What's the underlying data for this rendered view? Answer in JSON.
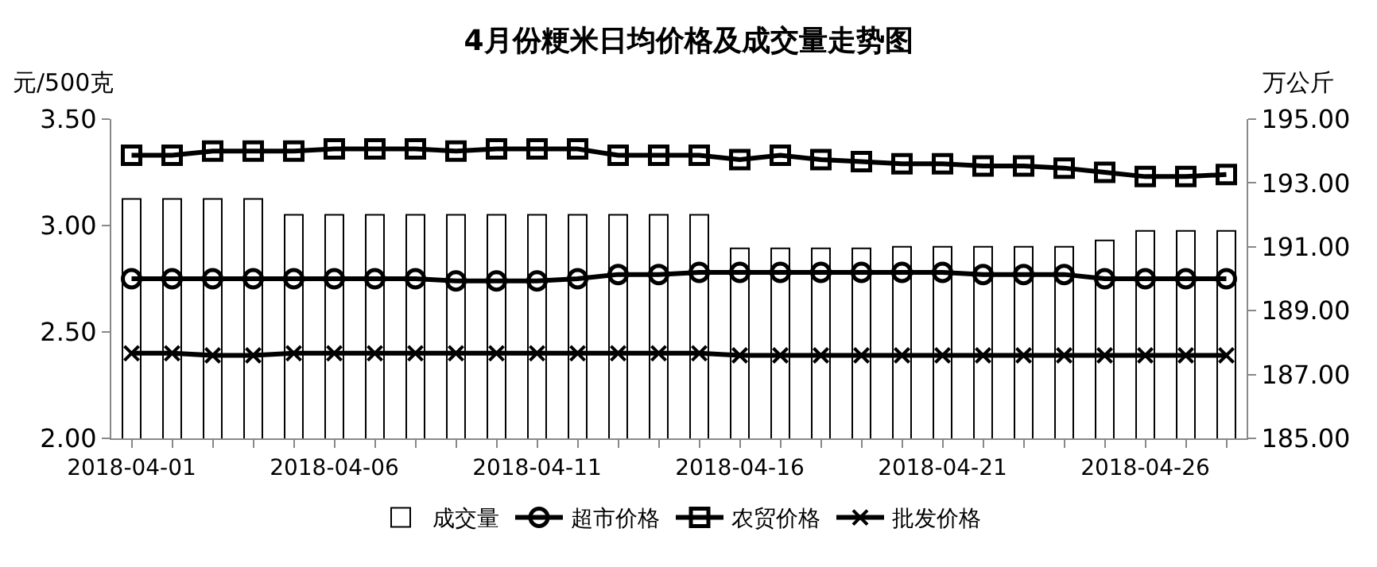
{
  "chart_data": {
    "type": "line",
    "title": "4月份粳米日均价格及成交量走势图",
    "ylabel": "元/500克",
    "y2label": "万公斤",
    "x": [
      "2018-04-01",
      "2018-04-02",
      "2018-04-03",
      "2018-04-04",
      "2018-04-05",
      "2018-04-06",
      "2018-04-07",
      "2018-04-08",
      "2018-04-09",
      "2018-04-10",
      "2018-04-11",
      "2018-04-12",
      "2018-04-13",
      "2018-04-14",
      "2018-04-15",
      "2018-04-16",
      "2018-04-17",
      "2018-04-18",
      "2018-04-19",
      "2018-04-20",
      "2018-04-21",
      "2018-04-22",
      "2018-04-23",
      "2018-04-24",
      "2018-04-25",
      "2018-04-26",
      "2018-04-27",
      "2018-04-28"
    ],
    "series": [
      {
        "name": "成交量",
        "type": "bar",
        "axis": "y2",
        "color": "#ffffff",
        "values": [
          192.5,
          192.5,
          192.5,
          192.5,
          192.0,
          192.0,
          192.0,
          192.0,
          192.0,
          192.0,
          192.0,
          192.0,
          192.0,
          192.0,
          192.0,
          190.95,
          190.95,
          190.95,
          190.95,
          191.0,
          191.0,
          191.0,
          191.0,
          191.0,
          191.2,
          191.5,
          191.5,
          191.5
        ]
      },
      {
        "name": "超市价格",
        "color": "#000000",
        "marker": "circle",
        "values": [
          2.75,
          2.75,
          2.75,
          2.75,
          2.75,
          2.75,
          2.75,
          2.75,
          2.74,
          2.74,
          2.74,
          2.75,
          2.77,
          2.77,
          2.78,
          2.78,
          2.78,
          2.78,
          2.78,
          2.78,
          2.78,
          2.77,
          2.77,
          2.77,
          2.75,
          2.75,
          2.75,
          2.75
        ]
      },
      {
        "name": "农贸价格",
        "color": "#000000",
        "marker": "square",
        "values": [
          3.33,
          3.33,
          3.35,
          3.35,
          3.35,
          3.36,
          3.36,
          3.36,
          3.35,
          3.36,
          3.36,
          3.36,
          3.33,
          3.33,
          3.33,
          3.31,
          3.33,
          3.31,
          3.3,
          3.29,
          3.29,
          3.28,
          3.28,
          3.27,
          3.25,
          3.23,
          3.23,
          3.24
        ]
      },
      {
        "name": "批发价格",
        "color": "#000000",
        "marker": "cross",
        "values": [
          2.4,
          2.4,
          2.39,
          2.39,
          2.4,
          2.4,
          2.4,
          2.4,
          2.4,
          2.4,
          2.4,
          2.4,
          2.4,
          2.4,
          2.4,
          2.39,
          2.39,
          2.39,
          2.39,
          2.39,
          2.39,
          2.39,
          2.39,
          2.39,
          2.39,
          2.39,
          2.39,
          2.39
        ]
      }
    ],
    "xlim": [
      "2018-03-31T12:00",
      "2018-04-28T12:00"
    ],
    "xticks": [
      "2018-04-01",
      "2018-04-06",
      "2018-04-11",
      "2018-04-16",
      "2018-04-21",
      "2018-04-26"
    ],
    "ylim": [
      2.0,
      3.5
    ],
    "yticks": [
      {
        "value": 2.0,
        "label": "2.00"
      },
      {
        "value": 2.5,
        "label": "2.50"
      },
      {
        "value": 3.0,
        "label": "3.00"
      },
      {
        "value": 3.5,
        "label": "3.50"
      }
    ],
    "y2lim": [
      185,
      195
    ],
    "y2ticks": [
      {
        "value": 185,
        "label": "185.00"
      },
      {
        "value": 187,
        "label": "187.00"
      },
      {
        "value": 189,
        "label": "189.00"
      },
      {
        "value": 191,
        "label": "191.00"
      },
      {
        "value": 193,
        "label": "193.00"
      },
      {
        "value": 195,
        "label": "195.00"
      }
    ],
    "legend": "bottom"
  }
}
